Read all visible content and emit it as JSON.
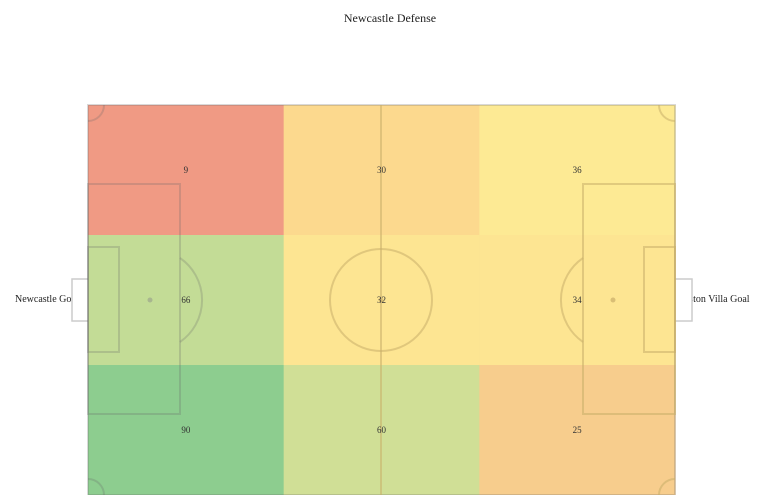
{
  "title": "Newcastle Defense",
  "left_goal_label": "Newcastle Goal",
  "right_goal_label": "Aston Villa Goal",
  "chart_data": {
    "type": "heatmap",
    "title": "Newcastle Defense",
    "rows": 3,
    "cols": 3,
    "values": [
      [
        9,
        30,
        36
      ],
      [
        66,
        32,
        34
      ],
      [
        90,
        60,
        25
      ]
    ],
    "colors": [
      [
        "#f09a84",
        "#fcd98e",
        "#fdea94"
      ],
      [
        "#c3dc96",
        "#fde592",
        "#fde592"
      ],
      [
        "#8dcd8f",
        "#d0df96",
        "#f7cd8d"
      ]
    ]
  }
}
